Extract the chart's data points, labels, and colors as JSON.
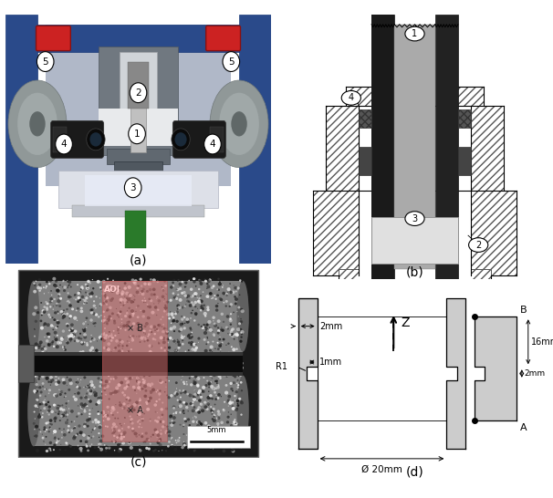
{
  "figure_title": "",
  "panel_labels": [
    "(a)",
    "(b)",
    "(c)",
    "(d)"
  ],
  "panel_label_fontsize": 10,
  "background_color": "#ffffff",
  "figsize": [
    6.06,
    5.46
  ],
  "dpi": 100,
  "panel_a": {
    "bg_color": "#4a5060",
    "frame_color": "#2a4080",
    "label": "(a)"
  },
  "panel_b": {
    "label": "(b)",
    "hatch": "////"
  },
  "panel_c": {
    "bg_color": "#111111",
    "speckle_color": "#888888",
    "aoi_color": "#e08080",
    "label": "(c)",
    "scalebar": "5mm"
  },
  "panel_d": {
    "label": "(d)",
    "wall_color": "#cccccc",
    "line_color": "#000000"
  }
}
